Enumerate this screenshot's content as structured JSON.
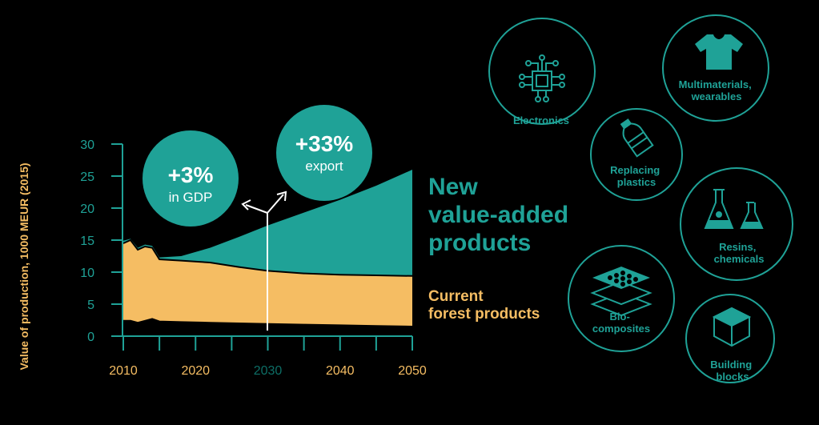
{
  "chart_data": {
    "type": "area",
    "title": "",
    "ylabel": "Value of production, 1000 MEUR (2015)",
    "xlabel": "",
    "xlim": [
      2010,
      2050
    ],
    "ylim": [
      0,
      30
    ],
    "x_ticks": [
      "2010",
      "2020",
      "2030",
      "2040",
      "2050"
    ],
    "x_tick_highlight": "2030",
    "y_ticks": [
      "0",
      "5",
      "10",
      "15",
      "20",
      "25",
      "30"
    ],
    "grid": false,
    "x": [
      2010,
      2011,
      2012,
      2013,
      2014,
      2015,
      2018,
      2022,
      2026,
      2030,
      2035,
      2040,
      2045,
      2050
    ],
    "series": [
      {
        "name": "Current forest products",
        "lower": [
          2.4,
          2.4,
          2.1,
          2.4,
          2.7,
          2.3,
          2.2,
          2.1,
          2.0,
          1.9,
          1.8,
          1.7,
          1.6,
          1.5
        ],
        "upper": [
          14.5,
          15.0,
          13.5,
          14.0,
          13.8,
          12.0,
          11.8,
          11.5,
          10.8,
          10.2,
          9.8,
          9.6,
          9.5,
          9.4
        ]
      },
      {
        "name": "New value-added products",
        "lower": [
          14.5,
          15.0,
          13.5,
          14.0,
          13.8,
          12.0,
          11.8,
          11.5,
          10.8,
          10.2,
          9.8,
          9.6,
          9.5,
          9.4
        ],
        "upper": [
          14.9,
          15.2,
          13.8,
          14.3,
          14.1,
          12.3,
          12.5,
          13.8,
          15.5,
          17.3,
          19.3,
          21.3,
          23.5,
          26.0
        ]
      }
    ],
    "legend": [
      {
        "text_lines": [
          "New",
          "value-added",
          "products"
        ],
        "color": "#1fa297"
      },
      {
        "text_lines": [
          "Current",
          "forest products"
        ],
        "color": "#f5bd63"
      }
    ],
    "annotations": [
      {
        "big": "+3%",
        "small": "in GDP"
      },
      {
        "big": "+33%",
        "small": "export"
      }
    ]
  },
  "categories": [
    {
      "icon": "chip-icon",
      "lines": [
        "Electronics"
      ]
    },
    {
      "icon": "tshirt-icon",
      "lines": [
        "Multimaterials,",
        "wearables"
      ]
    },
    {
      "icon": "bottle-icon",
      "lines": [
        "Replacing",
        "plastics"
      ]
    },
    {
      "icon": "flask-icon",
      "lines": [
        "Resins,",
        "chemicals"
      ]
    },
    {
      "icon": "layers-icon",
      "lines": [
        "Bio-",
        "composites"
      ]
    },
    {
      "icon": "cube-icon",
      "lines": [
        "Building",
        "blocks"
      ]
    }
  ],
  "colors": {
    "teal": "#1fa297",
    "teal_dark": "#0d6e66",
    "orange": "#f5bd63",
    "white": "#ffffff",
    "background": "#000000"
  }
}
